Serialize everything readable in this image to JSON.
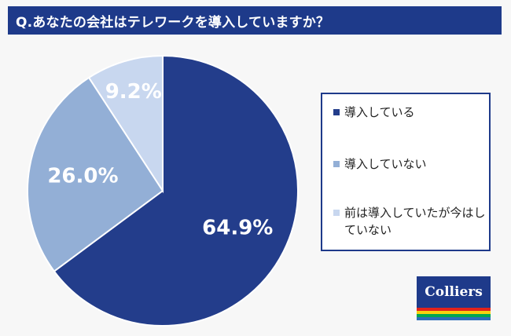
{
  "header": {
    "title": "Q.あなたの会社はテレワークを導入していますか？"
  },
  "chart_data": {
    "type": "pie",
    "title": "Q.あなたの会社はテレワークを導入していますか？",
    "categories": [
      "導入している",
      "導入していない",
      "前は導入していたが今はしていない"
    ],
    "values": [
      64.9,
      26.0,
      9.2
    ],
    "value_labels": [
      "64.9%",
      "26.0%",
      "9.2%"
    ],
    "colors": [
      "#233d8b",
      "#93afd6",
      "#c8d7ef"
    ],
    "legend_position": "right"
  },
  "legend": {
    "items": [
      {
        "label": "導入している",
        "color": "#233d8b"
      },
      {
        "label": "導入していない",
        "color": "#93afd6"
      },
      {
        "label": "前は導入していたが今はしていない",
        "color": "#c8d7ef"
      }
    ]
  },
  "logo": {
    "text": "Colliers",
    "colors": {
      "background": "#1e3a8a",
      "stripes": [
        "#e2231a",
        "#f6d20f",
        "#00a651",
        "#2a6ebb"
      ]
    }
  }
}
